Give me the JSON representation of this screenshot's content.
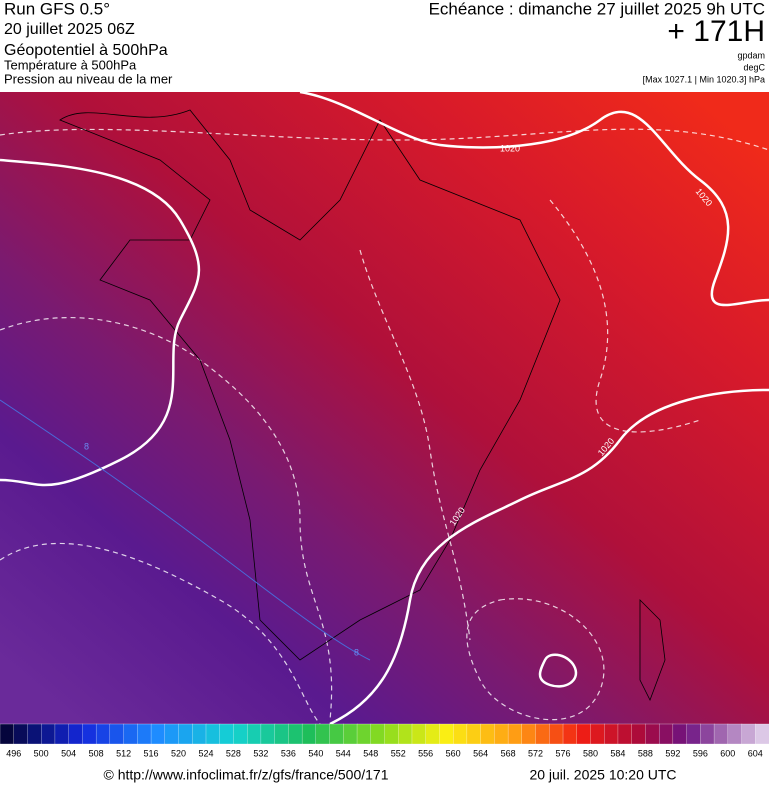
{
  "header": {
    "title": "Run GFS 0.5°",
    "run_date": "20 juillet 2025 06Z",
    "fields": [
      "Géopotentiel à 500hPa",
      "Température à 500hPa",
      "Pression au niveau de la mer"
    ],
    "valid_time": "Echéance : dimanche 27 juillet 2025 9h UTC",
    "lead": "+ 171H",
    "units": [
      "gpdam",
      "degC"
    ],
    "range": "[Max 1027.1 | Min 1020.3] hPa"
  },
  "map": {
    "contour_labels": [
      "1020",
      "1020",
      "1020",
      "1020",
      "8",
      "8"
    ]
  },
  "colorbar": {
    "labels": [
      496,
      500,
      504,
      508,
      512,
      516,
      520,
      524,
      528,
      532,
      536,
      540,
      544,
      548,
      552,
      556,
      560,
      564,
      568,
      572,
      576,
      580,
      584,
      588,
      592,
      596,
      600,
      604
    ]
  },
  "footer": {
    "url": "© http://www.infoclimat.fr/z/gfs/france/500/171",
    "timestamp": "20 juil. 2025 10:20 UTC"
  }
}
